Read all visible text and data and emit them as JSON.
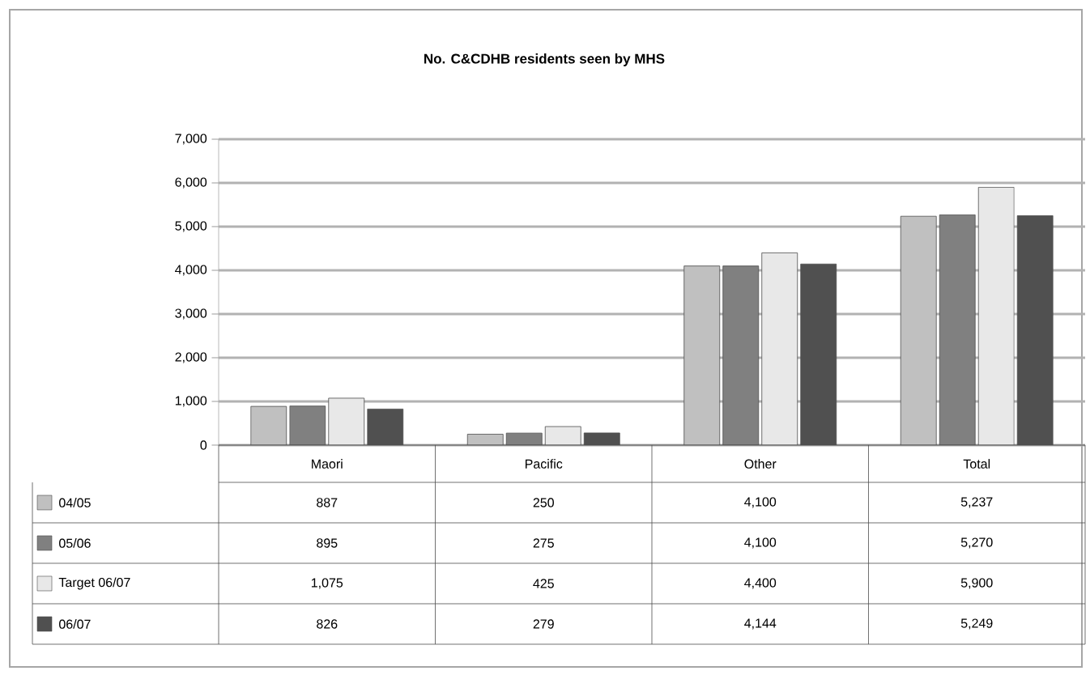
{
  "chart_data": {
    "type": "bar",
    "title": "No. C&CDHB residents seen by MHS",
    "categories": [
      "Maori",
      "Pacific",
      "Other",
      "Total"
    ],
    "series": [
      {
        "name": "04/05",
        "color": "#c0c0c0",
        "values": [
          887,
          250,
          4100,
          5237
        ],
        "value_labels": [
          "887",
          "250",
          "4,100",
          "5,237"
        ]
      },
      {
        "name": "05/06",
        "color": "#808080",
        "values": [
          895,
          275,
          4100,
          5270
        ],
        "value_labels": [
          "895",
          "275",
          "4,100",
          "5,270"
        ]
      },
      {
        "name": "Target 06/07",
        "color": "#e8e8e8",
        "values": [
          1075,
          425,
          4400,
          5900
        ],
        "value_labels": [
          "1,075",
          "425",
          "4,400",
          "5,900"
        ]
      },
      {
        "name": "06/07",
        "color": "#505050",
        "values": [
          826,
          279,
          4144,
          5249
        ],
        "value_labels": [
          "826",
          "279",
          "4,144",
          "5,249"
        ]
      }
    ],
    "ylim": [
      0,
      7000
    ],
    "yticks": [
      {
        "value": 0,
        "label": "0"
      },
      {
        "value": 1000,
        "label": "1,000"
      },
      {
        "value": 2000,
        "label": "2,000"
      },
      {
        "value": 3000,
        "label": "3,000"
      },
      {
        "value": 4000,
        "label": "4,000"
      },
      {
        "value": 5000,
        "label": "5,000"
      },
      {
        "value": 6000,
        "label": "6,000"
      },
      {
        "value": 7000,
        "label": "7,000"
      }
    ],
    "grid": "y",
    "legend": "left"
  }
}
